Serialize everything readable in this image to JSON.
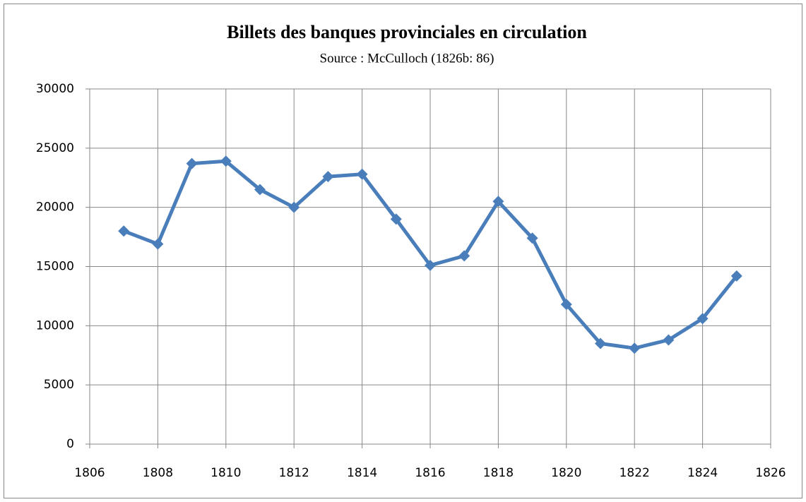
{
  "chart_data": {
    "type": "line",
    "title": "Billets des banques provinciales en circulation",
    "subtitle": "Source : McCulloch (1826b: 86)",
    "x": [
      1807,
      1808,
      1809,
      1810,
      1811,
      1812,
      1813,
      1814,
      1815,
      1816,
      1817,
      1818,
      1819,
      1820,
      1821,
      1822,
      1823,
      1824,
      1825
    ],
    "values": [
      18000,
      16900,
      23700,
      23900,
      21500,
      20000,
      22600,
      22800,
      19000,
      15100,
      15900,
      20500,
      17400,
      11800,
      8500,
      8100,
      8800,
      10600,
      14200
    ],
    "color": "#4a7ebb",
    "xlim": [
      1806,
      1826
    ],
    "xticks": [
      1806,
      1808,
      1810,
      1812,
      1814,
      1816,
      1818,
      1820,
      1822,
      1824,
      1826
    ],
    "ylim": [
      0,
      30000
    ],
    "yticks": [
      0,
      5000,
      10000,
      15000,
      20000,
      25000,
      30000
    ],
    "grid": true
  }
}
